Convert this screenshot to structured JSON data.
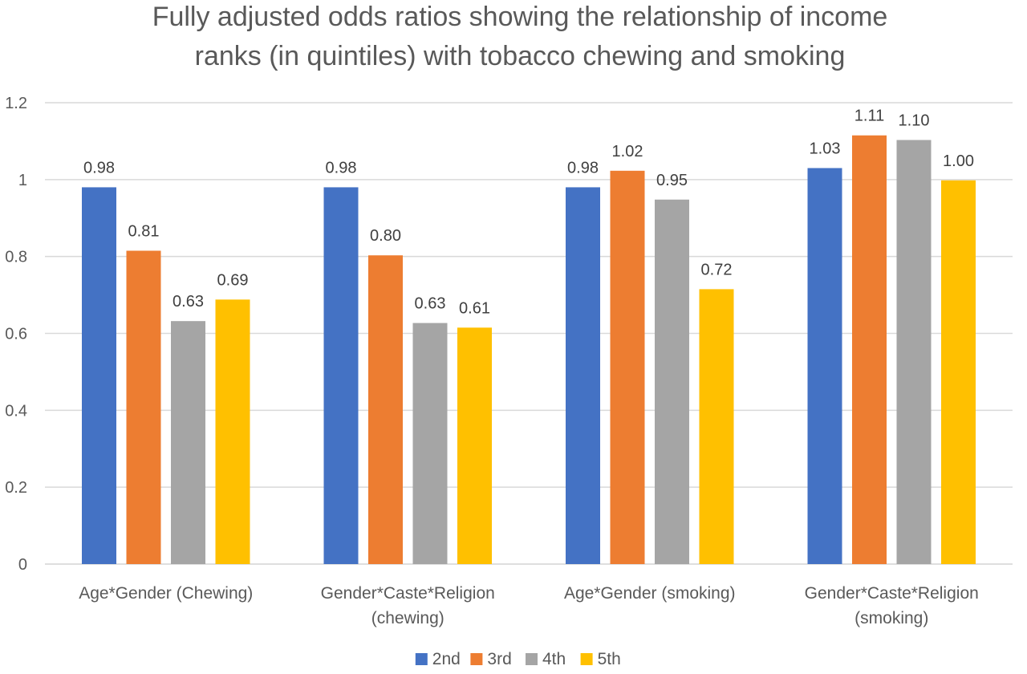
{
  "chart_data": {
    "type": "bar",
    "title": "Fully adjusted odds ratios showing the relationship of income ranks (in quintiles) with tobacco chewing and smoking",
    "title_lines": [
      "Fully adjusted odds ratios showing the relationship of income",
      "ranks (in quintiles) with tobacco chewing and smoking"
    ],
    "categories": [
      "Age*Gender (Chewing)",
      "Gender*Caste*Religion (chewing)",
      "Age*Gender (smoking)",
      "Gender*Caste*Religion (smoking)"
    ],
    "category_lines": [
      [
        "Age*Gender (Chewing)"
      ],
      [
        "Gender*Caste*Religion",
        "(chewing)"
      ],
      [
        "Age*Gender (smoking)"
      ],
      [
        "Gender*Caste*Religion",
        "(smoking)"
      ]
    ],
    "series": [
      {
        "name": "2nd",
        "color": "#4472C4",
        "values": [
          0.98,
          0.98,
          0.98,
          1.03
        ],
        "labels": [
          "0.98",
          "0.98",
          "0.98",
          "1.03"
        ]
      },
      {
        "name": "3rd",
        "color": "#ED7D31",
        "values": [
          0.815,
          0.803,
          1.023,
          1.115
        ],
        "labels": [
          "0.81",
          "0.80",
          "1.02",
          "1.11"
        ]
      },
      {
        "name": "4th",
        "color": "#A5A5A5",
        "values": [
          0.632,
          0.627,
          0.948,
          1.103
        ],
        "labels": [
          "0.63",
          "0.63",
          "0.95",
          "1.10"
        ]
      },
      {
        "name": "5th",
        "color": "#FFC000",
        "values": [
          0.688,
          0.615,
          0.715,
          0.998
        ],
        "labels": [
          "0.69",
          "0.61",
          "0.72",
          "1.00"
        ]
      }
    ],
    "yticks": [
      "0",
      "0.2",
      "0.4",
      "0.6",
      "0.8",
      "1",
      "1.2"
    ],
    "ylim": [
      0,
      1.2
    ],
    "xlabel": "",
    "ylabel": "",
    "grid": true,
    "legend": "bottom-center"
  }
}
